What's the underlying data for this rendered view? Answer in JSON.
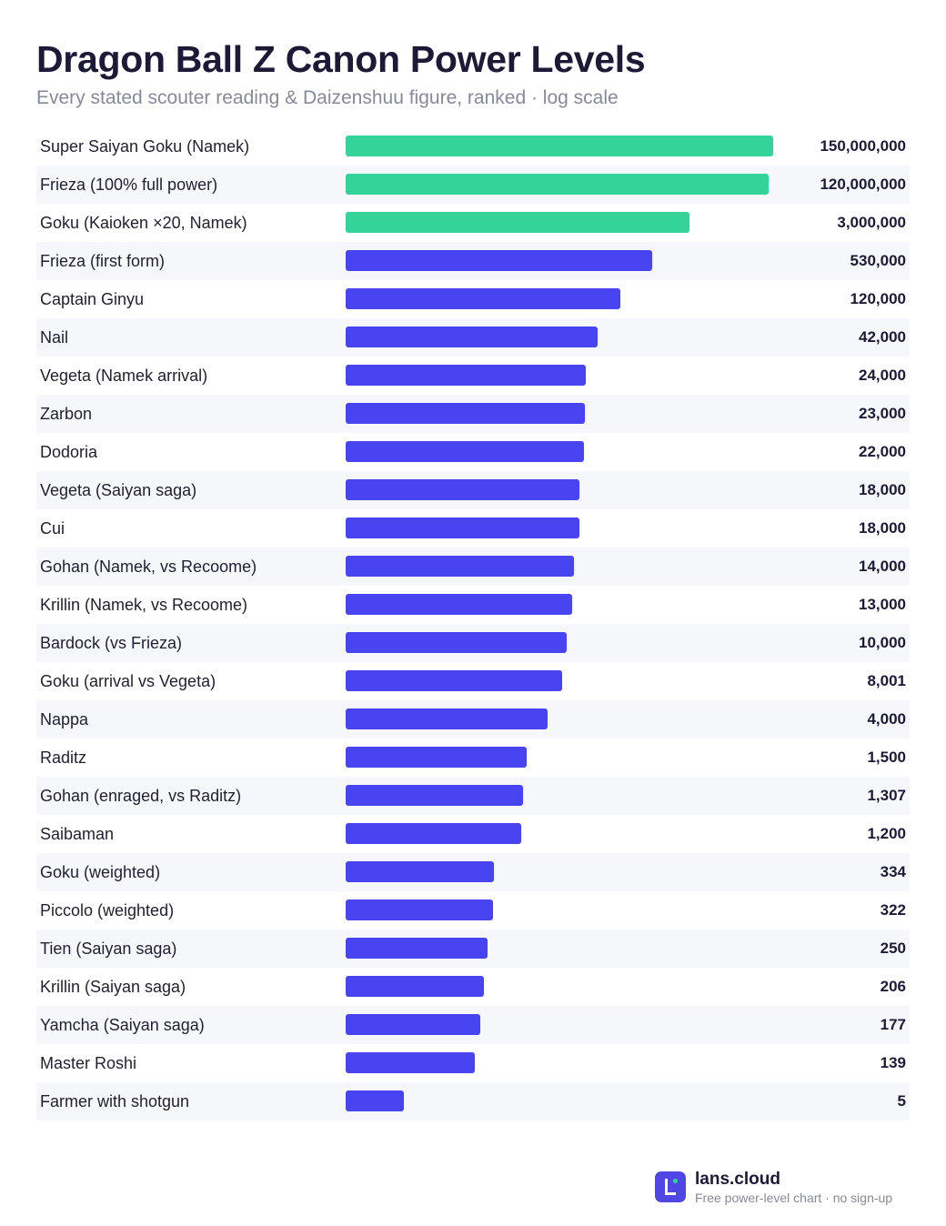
{
  "chart_data": {
    "type": "bar",
    "orientation": "horizontal",
    "title": "Dragon Ball Z Canon Power Levels",
    "subtitle": "Every stated scouter reading & Daizenshuu figure, ranked · log scale",
    "x_scale": "log",
    "xlim": [
      1,
      150000000
    ],
    "grid": false,
    "colors": {
      "highlight": "#34d399",
      "default": "#4845f0"
    },
    "categories": [
      "Super Saiyan Goku (Namek)",
      "Frieza (100% full power)",
      "Goku (Kaioken ×20, Namek)",
      "Frieza (first form)",
      "Captain Ginyu",
      "Nail",
      "Vegeta (Namek arrival)",
      "Zarbon",
      "Dodoria",
      "Vegeta (Saiyan saga)",
      "Cui",
      "Gohan (Namek, vs Recoome)",
      "Krillin (Namek, vs Recoome)",
      "Bardock (vs Frieza)",
      "Goku (arrival vs Vegeta)",
      "Nappa",
      "Raditz",
      "Gohan (enraged, vs Raditz)",
      "Saibaman",
      "Goku (weighted)",
      "Piccolo (weighted)",
      "Tien (Saiyan saga)",
      "Krillin (Saiyan saga)",
      "Yamcha (Saiyan saga)",
      "Master Roshi",
      "Farmer with shotgun"
    ],
    "values": [
      150000000,
      120000000,
      3000000,
      530000,
      120000,
      42000,
      24000,
      23000,
      22000,
      18000,
      18000,
      14000,
      13000,
      10000,
      8001,
      4000,
      1500,
      1307,
      1200,
      334,
      322,
      250,
      206,
      177,
      139,
      5
    ],
    "value_labels": [
      "150,000,000",
      "120,000,000",
      "3,000,000",
      "530,000",
      "120,000",
      "42,000",
      "24,000",
      "23,000",
      "22,000",
      "18,000",
      "18,000",
      "14,000",
      "13,000",
      "10,000",
      "8,001",
      "4,000",
      "1,500",
      "1,307",
      "1,200",
      "334",
      "322",
      "250",
      "206",
      "177",
      "139",
      "5"
    ],
    "highlighted": [
      true,
      true,
      true,
      false,
      false,
      false,
      false,
      false,
      false,
      false,
      false,
      false,
      false,
      false,
      false,
      false,
      false,
      false,
      false,
      false,
      false,
      false,
      false,
      false,
      false,
      false
    ]
  },
  "footer": {
    "brand": "lans.cloud",
    "tagline": "Free power-level chart · no sign-up",
    "logo_icon": "lans-cloud-logo-icon"
  }
}
